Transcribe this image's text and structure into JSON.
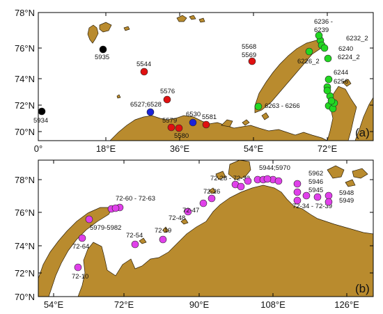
{
  "colors": {
    "land": "#b98b2e",
    "black": "#000000",
    "red": "#e01010",
    "blue": "#1a22d8",
    "green": "#22d822",
    "magenta": "#e040ea"
  },
  "panel_a": {
    "letter": "(a)",
    "lat_ticks": [
      "78°N",
      "76°N",
      "74°N",
      "72°N",
      "70°N"
    ],
    "lon_ticks": [
      "0°",
      "18°E",
      "36°E",
      "54°E",
      "72°E"
    ],
    "stations": [
      {
        "label": "5934",
        "color": "black"
      },
      {
        "label": "5935",
        "color": "black"
      },
      {
        "label": "5544",
        "color": "red"
      },
      {
        "label": "5576",
        "color": "red"
      },
      {
        "label": "6527;6528",
        "color": "blue"
      },
      {
        "label": "5579",
        "color": "red"
      },
      {
        "label": "5580",
        "color": "red"
      },
      {
        "label": "6530",
        "color": "blue"
      },
      {
        "label": "5581",
        "color": "red"
      },
      {
        "label": "5568",
        "color": "red"
      },
      {
        "label": "5569",
        "color": "red"
      },
      {
        "label": "6263 - 6266",
        "color": "green"
      },
      {
        "label": "6236 -",
        "color": "green"
      },
      {
        "label": "6239",
        "color": "green"
      },
      {
        "label": "6232_2",
        "color": "green"
      },
      {
        "label": "6240",
        "color": "green"
      },
      {
        "label": "6226_2",
        "color": "green"
      },
      {
        "label": "6224_2",
        "color": "green"
      },
      {
        "label": "6244",
        "color": "green"
      },
      {
        "label": "6256",
        "color": "green"
      }
    ]
  },
  "panel_b": {
    "letter": "(b)",
    "lat_ticks": [
      "78°N",
      "76°N",
      "74°N",
      "72°N",
      "70°N"
    ],
    "lon_ticks": [
      "54°E",
      "72°E",
      "90°E",
      "108°E",
      "126°E"
    ],
    "stations": [
      {
        "label": "72-10",
        "color": "magenta"
      },
      {
        "label": "72-64",
        "color": "magenta"
      },
      {
        "label": "5979-5982",
        "color": "magenta"
      },
      {
        "label": "72-60 - 72-63",
        "color": "magenta"
      },
      {
        "label": "72-54",
        "color": "magenta"
      },
      {
        "label": "72-19",
        "color": "magenta"
      },
      {
        "label": "72-48",
        "color": "magenta"
      },
      {
        "label": "72-47",
        "color": "magenta"
      },
      {
        "label": "72-26",
        "color": "magenta"
      },
      {
        "label": "72-28 - 72-32",
        "color": "magenta"
      },
      {
        "label": "5944;5970",
        "color": "magenta"
      },
      {
        "label": "5962",
        "color": "magenta"
      },
      {
        "label": "5946",
        "color": "magenta"
      },
      {
        "label": "5945",
        "color": "magenta"
      },
      {
        "label": "72-34 - 72-39",
        "color": "magenta"
      },
      {
        "label": "5948",
        "color": "magenta"
      },
      {
        "label": "5949",
        "color": "magenta"
      }
    ]
  }
}
